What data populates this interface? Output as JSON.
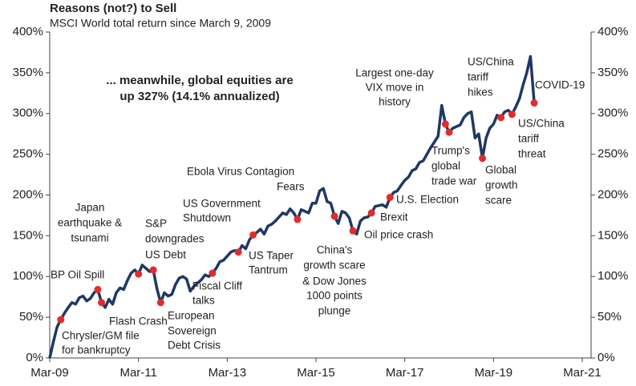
{
  "chart_data": {
    "type": "line",
    "title": "Reasons (not?) to Sell",
    "subtitle": "MSCI World total return since March 9, 2009",
    "color": "#1f3864",
    "marker_color": "#e32b2b",
    "x": [
      "2009-03",
      "2009-04",
      "2009-05",
      "2009-06",
      "2009-07",
      "2009-08",
      "2009-09",
      "2009-10",
      "2009-11",
      "2009-12",
      "2010-01",
      "2010-02",
      "2010-03",
      "2010-04",
      "2010-05",
      "2010-06",
      "2010-07",
      "2010-08",
      "2010-09",
      "2010-10",
      "2010-11",
      "2010-12",
      "2011-01",
      "2011-02",
      "2011-03",
      "2011-04",
      "2011-05",
      "2011-06",
      "2011-07",
      "2011-08",
      "2011-09",
      "2011-10",
      "2011-11",
      "2011-12",
      "2012-01",
      "2012-02",
      "2012-03",
      "2012-04",
      "2012-05",
      "2012-06",
      "2012-07",
      "2012-08",
      "2012-09",
      "2012-10",
      "2012-11",
      "2012-12",
      "2013-01",
      "2013-02",
      "2013-03",
      "2013-04",
      "2013-05",
      "2013-06",
      "2013-07",
      "2013-08",
      "2013-09",
      "2013-10",
      "2013-11",
      "2013-12",
      "2014-01",
      "2014-02",
      "2014-03",
      "2014-04",
      "2014-05",
      "2014-06",
      "2014-07",
      "2014-08",
      "2014-09",
      "2014-10",
      "2014-11",
      "2014-12",
      "2015-01",
      "2015-02",
      "2015-03",
      "2015-04",
      "2015-05",
      "2015-06",
      "2015-07",
      "2015-08",
      "2015-09",
      "2015-10",
      "2015-11",
      "2015-12",
      "2016-01",
      "2016-02",
      "2016-03",
      "2016-04",
      "2016-05",
      "2016-06",
      "2016-07",
      "2016-08",
      "2016-09",
      "2016-10",
      "2016-11",
      "2016-12",
      "2017-01",
      "2017-02",
      "2017-03",
      "2017-04",
      "2017-05",
      "2017-06",
      "2017-07",
      "2017-08",
      "2017-09",
      "2017-10",
      "2017-11",
      "2017-12",
      "2018-01",
      "2018-02",
      "2018-03",
      "2018-04",
      "2018-05",
      "2018-06",
      "2018-07",
      "2018-08",
      "2018-09",
      "2018-10",
      "2018-11",
      "2018-12",
      "2019-01",
      "2019-02",
      "2019-03",
      "2019-04",
      "2019-05",
      "2019-06",
      "2019-07",
      "2019-08",
      "2019-09",
      "2019-10",
      "2019-11",
      "2019-12",
      "2020-01",
      "2020-02"
    ],
    "values": [
      0,
      20,
      38,
      47,
      55,
      62,
      68,
      66,
      74,
      76,
      70,
      73,
      80,
      84,
      68,
      62,
      72,
      66,
      80,
      86,
      84,
      95,
      104,
      108,
      103,
      114,
      110,
      106,
      108,
      85,
      68,
      80,
      76,
      78,
      90,
      98,
      100,
      97,
      82,
      88,
      92,
      96,
      102,
      100,
      104,
      110,
      118,
      120,
      125,
      130,
      132,
      130,
      138,
      134,
      145,
      151,
      154,
      158,
      152,
      162,
      164,
      168,
      173,
      178,
      176,
      183,
      178,
      170,
      182,
      180,
      178,
      190,
      190,
      205,
      208,
      192,
      190,
      174,
      165,
      180,
      178,
      172,
      156,
      152,
      168,
      172,
      173,
      178,
      186,
      187,
      188,
      185,
      197,
      203,
      205,
      212,
      218,
      222,
      230,
      232,
      240,
      242,
      250,
      258,
      265,
      272,
      310,
      287,
      277,
      282,
      284,
      286,
      295,
      300,
      302,
      270,
      275,
      245,
      270,
      282,
      287,
      298,
      295,
      302,
      304,
      299,
      308,
      318,
      335,
      350,
      370,
      313
    ],
    "xlim": [
      "2009-03",
      "2021-03"
    ],
    "xticks": [
      {
        "value": "2009-03",
        "label": "Mar-09"
      },
      {
        "value": "2011-03",
        "label": "Mar-11"
      },
      {
        "value": "2013-03",
        "label": "Mar-13"
      },
      {
        "value": "2015-03",
        "label": "Mar-15"
      },
      {
        "value": "2017-03",
        "label": "Mar-17"
      },
      {
        "value": "2019-03",
        "label": "Mar-19"
      },
      {
        "value": "2021-03",
        "label": "Mar-21"
      }
    ],
    "ylim": [
      0,
      400
    ],
    "yticks": [
      {
        "value": 0,
        "label": "0%"
      },
      {
        "value": 50,
        "label": "50%"
      },
      {
        "value": 100,
        "label": "100%"
      },
      {
        "value": 150,
        "label": "150%"
      },
      {
        "value": 200,
        "label": "200%"
      },
      {
        "value": 250,
        "label": "250%"
      },
      {
        "value": 300,
        "label": "300%"
      },
      {
        "value": 350,
        "label": "350%"
      },
      {
        "value": 400,
        "label": "400%"
      }
    ],
    "callout": {
      "lines": [
        "... meanwhile, global equities are",
        "up 327% (14.1% annualized)"
      ],
      "color": "#e32b2b"
    },
    "annotations": [
      {
        "lines": [
          "BP Oil Spill"
        ],
        "x": "2010-04",
        "y": 84
      },
      {
        "lines": [
          "Chrysler/GM file",
          "for bankruptcy"
        ],
        "x": "2009-06",
        "y": 47
      },
      {
        "lines": [
          "Flash Crash"
        ],
        "x": "2010-05",
        "y": 68
      },
      {
        "lines": [
          "Japan",
          "earthquake &",
          "tsunami"
        ],
        "x": "2011-03",
        "y": 103
      },
      {
        "lines": [
          "S&P",
          "downgrades",
          "US Debt"
        ],
        "x": "2011-07",
        "y": 108
      },
      {
        "lines": [
          "European",
          "Sovereign",
          "Debt Crisis"
        ],
        "x": "2011-09",
        "y": 68
      },
      {
        "lines": [
          "Fiscal Cliff",
          "talks"
        ],
        "x": "2012-11",
        "y": 104
      },
      {
        "lines": [
          "US Taper",
          "Tantrum"
        ],
        "x": "2013-06",
        "y": 130
      },
      {
        "lines": [
          "US Government",
          "Shutdown"
        ],
        "x": "2013-10",
        "y": 151
      },
      {
        "lines": [
          "Ebola Virus Contagion",
          "Fears"
        ],
        "x": "2014-10",
        "y": 170
      },
      {
        "lines": [
          "China's",
          "growth scare",
          "& Dow Jones",
          "1000 points",
          "plunge"
        ],
        "x": "2015-08",
        "y": 174
      },
      {
        "lines": [
          "Oil price crash"
        ],
        "x": "2016-01",
        "y": 156
      },
      {
        "lines": [
          "Brexit"
        ],
        "x": "2016-06",
        "y": 178
      },
      {
        "lines": [
          "U.S. Election"
        ],
        "x": "2016-11",
        "y": 197
      },
      {
        "lines": [
          "Largest one-day",
          "VIX move in",
          "history"
        ],
        "x": "2018-02",
        "y": 287
      },
      {
        "lines": [
          "Trump's",
          "global",
          "trade war"
        ],
        "x": "2018-03",
        "y": 277
      },
      {
        "lines": [
          "Global",
          "growth",
          "scare"
        ],
        "x": "2018-12",
        "y": 245
      },
      {
        "lines": [
          "US/China",
          "tariff",
          "hikes"
        ],
        "x": "2019-05",
        "y": 295
      },
      {
        "lines": [
          "US/China",
          "tariff",
          "threat"
        ],
        "x": "2019-08",
        "y": 299
      },
      {
        "lines": [
          "COVID-19"
        ],
        "x": "2020-02",
        "y": 313
      }
    ]
  }
}
